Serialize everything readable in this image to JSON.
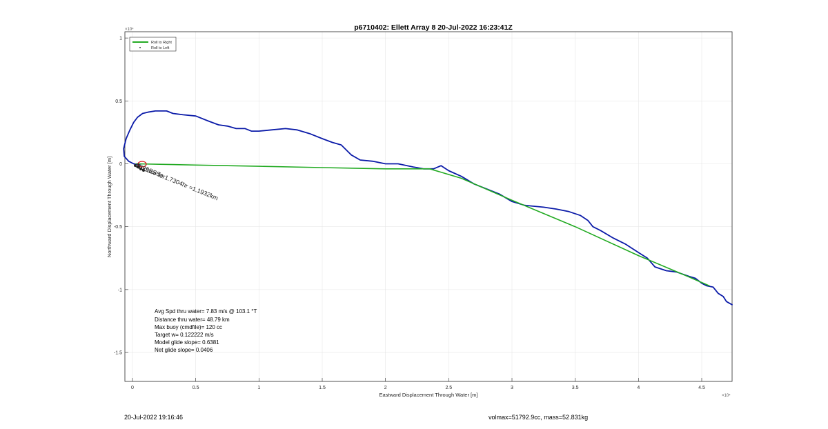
{
  "chart_data": {
    "type": "line",
    "title": "p6710402: Ellett Array 8 20-Jul-2022 16:23:41Z",
    "xlabel": "Eastward Displacement Through Water [m]",
    "ylabel": "Northward Displacement Through Water [m]",
    "xlim": [
      -600,
      47400
    ],
    "ylim": [
      -17300,
      10500
    ],
    "grid": true,
    "x_exponent": "×10⁴",
    "y_exponent": "×10⁴",
    "x_ticks": [
      {
        "value": 0,
        "label": "0"
      },
      {
        "value": 5000,
        "label": "0.5"
      },
      {
        "value": 10000,
        "label": "1"
      },
      {
        "value": 15000,
        "label": "1.5"
      },
      {
        "value": 20000,
        "label": "2"
      },
      {
        "value": 25000,
        "label": "2.5"
      },
      {
        "value": 30000,
        "label": "3"
      },
      {
        "value": 35000,
        "label": "3.5"
      },
      {
        "value": 40000,
        "label": "4"
      },
      {
        "value": 45000,
        "label": "4.5"
      }
    ],
    "y_ticks": [
      {
        "value": 10000,
        "label": "1"
      },
      {
        "value": 5000,
        "label": "0.5"
      },
      {
        "value": 0,
        "label": "0"
      },
      {
        "value": -5000,
        "label": "-0.5"
      },
      {
        "value": -10000,
        "label": "-1"
      },
      {
        "value": -15000,
        "label": "-1.5"
      }
    ],
    "legend": {
      "location": "top-left",
      "entries": [
        {
          "label": "Roll to Right",
          "color": "#22aa22",
          "marker": "line"
        },
        {
          "label": "Roll to Left",
          "color": "#000000",
          "marker": "dot"
        }
      ]
    },
    "series": [
      {
        "color": "#0a1aa8",
        "points": [
          [
            47400,
            -11200
          ],
          [
            46950,
            -10950
          ],
          [
            46700,
            -10550
          ],
          [
            46300,
            -10300
          ],
          [
            45900,
            -9800
          ],
          [
            45400,
            -9700
          ],
          [
            45000,
            -9500
          ],
          [
            44500,
            -9100
          ],
          [
            44000,
            -8950
          ],
          [
            43000,
            -8600
          ],
          [
            42200,
            -8500
          ],
          [
            41300,
            -8200
          ],
          [
            40700,
            -7500
          ],
          [
            40000,
            -7050
          ],
          [
            39000,
            -6400
          ],
          [
            38000,
            -5900
          ],
          [
            37000,
            -5300
          ],
          [
            36400,
            -5000
          ],
          [
            36000,
            -4500
          ],
          [
            35400,
            -4100
          ],
          [
            34500,
            -3800
          ],
          [
            33500,
            -3600
          ],
          [
            32500,
            -3450
          ],
          [
            31000,
            -3300
          ],
          [
            30000,
            -3000
          ],
          [
            29000,
            -2400
          ],
          [
            28000,
            -2000
          ],
          [
            27000,
            -1600
          ],
          [
            26000,
            -1000
          ],
          [
            25000,
            -550
          ],
          [
            24400,
            -150
          ],
          [
            23800,
            -400
          ],
          [
            23000,
            -400
          ],
          [
            22200,
            -250
          ],
          [
            21000,
            0
          ],
          [
            20000,
            0
          ],
          [
            19000,
            200
          ],
          [
            18000,
            300
          ],
          [
            17300,
            700
          ],
          [
            16500,
            1500
          ],
          [
            15800,
            1700
          ],
          [
            15000,
            2000
          ],
          [
            14000,
            2400
          ],
          [
            13000,
            2700
          ],
          [
            12100,
            2800
          ],
          [
            11000,
            2700
          ],
          [
            10000,
            2600
          ],
          [
            9400,
            2600
          ],
          [
            8900,
            2800
          ],
          [
            8200,
            2800
          ],
          [
            7500,
            3000
          ],
          [
            6800,
            3100
          ],
          [
            6000,
            3400
          ],
          [
            5000,
            3800
          ],
          [
            4000,
            3900
          ],
          [
            3200,
            4000
          ],
          [
            2700,
            4200
          ],
          [
            2300,
            4200
          ],
          [
            1800,
            4200
          ],
          [
            1200,
            4100
          ],
          [
            800,
            4000
          ],
          [
            400,
            3700
          ],
          [
            100,
            3300
          ],
          [
            -200,
            2700
          ],
          [
            -500,
            2000
          ],
          [
            -700,
            1200
          ],
          [
            -650,
            600
          ],
          [
            -300,
            200
          ],
          [
            100,
            0
          ],
          [
            600,
            -100
          ]
        ]
      },
      {
        "color": "#22aa22",
        "points": [
          [
            300,
            0
          ],
          [
            5000,
            -100
          ],
          [
            10000,
            -200
          ],
          [
            15000,
            -300
          ],
          [
            20000,
            -400
          ],
          [
            23500,
            -400
          ],
          [
            26000,
            -1150
          ],
          [
            30000,
            -2900
          ],
          [
            35000,
            -5000
          ],
          [
            40000,
            -7300
          ],
          [
            44000,
            -9000
          ],
          [
            45600,
            -9700
          ]
        ]
      }
    ],
    "annotations": {
      "ring_text": "Surface for1.7304hr =1.1932km",
      "ring_label_overlap": "2022SSSs",
      "stats": [
        "Avg Spd thru water=  7.83 m/s @ 103.1 °T",
        "Distance thru water= 48.79 km",
        "Max buoy (cmdfile)= 120 cc",
        "Target w= 0.122222 m/s",
        "Model glide slope= 0.6381",
        "Net glide slope= 0.0406"
      ]
    }
  },
  "footer": {
    "left": "20-Jul-2022 19:16:46",
    "right": "volmax=51792.9cc, mass=52.831kg"
  }
}
